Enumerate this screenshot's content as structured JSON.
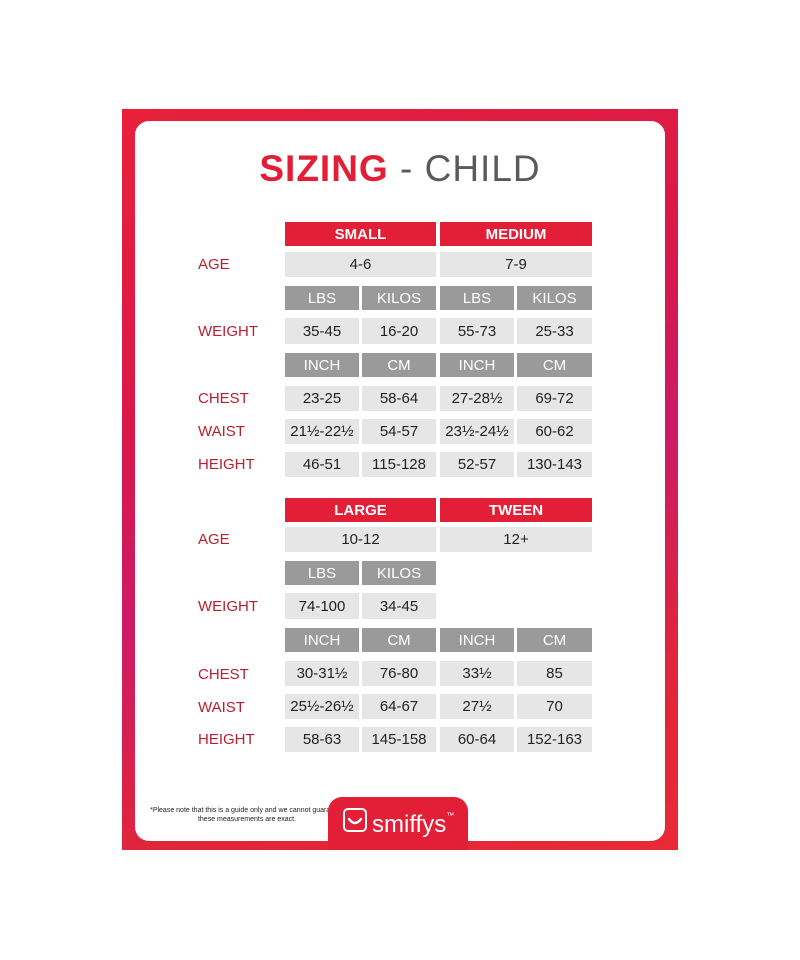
{
  "title": {
    "accent": "SIZING",
    "rest": "- CHILD"
  },
  "row_labels": {
    "age": "AGE",
    "weight": "WEIGHT",
    "chest": "CHEST",
    "waist": "WAIST",
    "height": "HEIGHT"
  },
  "units": {
    "lbs": "LBS",
    "kilos": "KILOS",
    "inch": "INCH",
    "cm": "CM"
  },
  "sections": [
    {
      "sizes": [
        "SMALL",
        "MEDIUM"
      ],
      "age": [
        "4-6",
        "7-9"
      ],
      "weight": [
        "35-45",
        "16-20",
        "55-73",
        "25-33"
      ],
      "chest": [
        "23-25",
        "58-64",
        "27-28½",
        "69-72"
      ],
      "waist": [
        "21½-22½",
        "54-57",
        "23½-24½",
        "60-62"
      ],
      "height": [
        "46-51",
        "115-128",
        "52-57",
        "130-143"
      ]
    },
    {
      "sizes": [
        "LARGE",
        "TWEEN"
      ],
      "age": [
        "10-12",
        "12+"
      ],
      "weight": [
        "74-100",
        "34-45"
      ],
      "chest": [
        "30-31½",
        "76-80",
        "33½",
        "85"
      ],
      "waist": [
        "25½-26½",
        "64-67",
        "27½",
        "70"
      ],
      "height": [
        "58-63",
        "145-158",
        "60-64",
        "152-163"
      ]
    }
  ],
  "footnote": "*Please note that this is a guide only and we cannot guarantee these measurements are exact.",
  "brand": "smiffys",
  "brand_mark": "™",
  "colors": {
    "accent": "#e21f36",
    "header_grey": "#9a9a9a",
    "cell_grey": "#e6e6e6",
    "label": "#b82030"
  }
}
